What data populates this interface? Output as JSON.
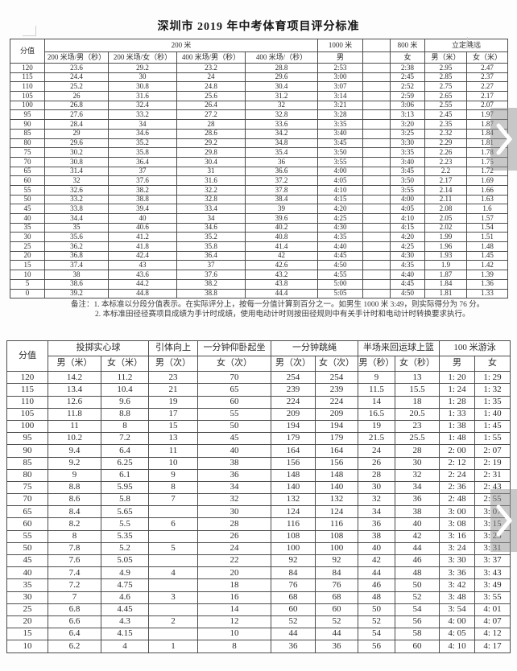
{
  "page": {
    "title": "深圳市 2019 年中考体育项目评分标准"
  },
  "colors": {
    "table_border": "#4d4d4d",
    "text": "#2b2b2b",
    "arrow_overlay": "rgba(145,145,145,0.5)",
    "arrow_glyph": "#ffffff"
  },
  "icons": {
    "next": "chevron-right"
  },
  "table1": {
    "header_row1": {
      "score": "分值",
      "m200": "200 米",
      "m1000": "1000 米",
      "empty": "",
      "m800": "800 米",
      "jump": "立定跳远"
    },
    "header_row2": [
      "200 米场/男（秒）",
      "200 米场/女（秒）",
      "400 米场/男（秒）",
      "400 米场/（秒）",
      "男",
      "",
      "女",
      "男（米）",
      "女（米）"
    ],
    "rows": [
      [
        "120",
        "23.6",
        "29.2",
        "23.2",
        "28.8",
        "2:53",
        "",
        "2:38",
        "2.95",
        "2.47"
      ],
      [
        "115",
        "24.4",
        "30",
        "24",
        "29.6",
        "3:00",
        "",
        "2:45",
        "2.85",
        "2.37"
      ],
      [
        "110",
        "25.2",
        "30.8",
        "24.8",
        "30.4",
        "3:07",
        "",
        "2:52",
        "2.75",
        "2.27"
      ],
      [
        "105",
        "26",
        "31.6",
        "25.6",
        "31.2",
        "3:14",
        "",
        "2:59",
        "2.65",
        "2.17"
      ],
      [
        "100",
        "26.8",
        "32.4",
        "26.4",
        "32",
        "3:21",
        "",
        "3:06",
        "2.55",
        "2.07"
      ],
      [
        "95",
        "27.6",
        "33.2",
        "27.2",
        "32.8",
        "3:28",
        "",
        "3:13",
        "2.45",
        "1.97"
      ],
      [
        "90",
        "28.4",
        "34",
        "28",
        "33.6",
        "3:35",
        "",
        "3:20",
        "2.35",
        "1.87"
      ],
      [
        "85",
        "29",
        "34.6",
        "28.6",
        "34.2",
        "3:40",
        "",
        "3:25",
        "2.32",
        "1.84"
      ],
      [
        "80",
        "29.6",
        "35.2",
        "29.2",
        "34.8",
        "3:45",
        "",
        "3:30",
        "2.29",
        "1.81"
      ],
      [
        "75",
        "30.2",
        "35.8",
        "29.8",
        "35.4",
        "3:50",
        "",
        "3:35",
        "2.26",
        "1.78"
      ],
      [
        "70",
        "30.8",
        "36.4",
        "30.4",
        "36",
        "3:55",
        "",
        "3:40",
        "2.23",
        "1.75"
      ],
      [
        "65",
        "31.4",
        "37",
        "31",
        "36.6",
        "4:00",
        "",
        "3:45",
        "2.2",
        "1.72"
      ],
      [
        "60",
        "32",
        "37.6",
        "31.6",
        "37.2",
        "4:05",
        "",
        "3:50",
        "2.17",
        "1.69"
      ],
      [
        "55",
        "32.6",
        "38.2",
        "32.2",
        "37.8",
        "4:10",
        "",
        "3:55",
        "2.14",
        "1.66"
      ],
      [
        "50",
        "33.2",
        "38.8",
        "32.8",
        "38.4",
        "4:15",
        "",
        "4:00",
        "2.11",
        "1.63"
      ],
      [
        "45",
        "33.8",
        "39.4",
        "33.4",
        "39",
        "4:20",
        "",
        "4:05",
        "2.08",
        "1.6"
      ],
      [
        "40",
        "34.4",
        "40",
        "34",
        "39.6",
        "4:25",
        "",
        "4:10",
        "2.05",
        "1.57"
      ],
      [
        "35",
        "35",
        "40.6",
        "34.6",
        "40.2",
        "4:30",
        "",
        "4:15",
        "2.02",
        "1.54"
      ],
      [
        "30",
        "35.6",
        "41.2",
        "35.2",
        "40.8",
        "4:35",
        "",
        "4:20",
        "1.99",
        "1.51"
      ],
      [
        "25",
        "36.2",
        "41.8",
        "35.8",
        "41.4",
        "4:40",
        "",
        "4:25",
        "1.96",
        "1.48"
      ],
      [
        "20",
        "36.8",
        "42.4",
        "36.4",
        "42",
        "4:45",
        "",
        "4:30",
        "1.93",
        "1.45"
      ],
      [
        "15",
        "37.4",
        "43",
        "37",
        "42.6",
        "4:50",
        "",
        "4:35",
        "1.9",
        "1.42"
      ],
      [
        "10",
        "38",
        "43.6",
        "37.6",
        "43.2",
        "4:55",
        "",
        "4:40",
        "1.87",
        "1.39"
      ],
      [
        "5",
        "38.6",
        "44.2",
        "38.2",
        "43.8",
        "5:00",
        "",
        "4:45",
        "1.84",
        "1.36"
      ],
      [
        "0",
        "39.2",
        "44.8",
        "38.8",
        "44.4",
        "5:05",
        "",
        "4:50",
        "1.81",
        "1.33"
      ]
    ]
  },
  "notes": {
    "label": "备注：",
    "items": [
      "1. 本标准以分段分值表示。在实际评分上，按每一分值计算到百分之一。如男生 1000 米 3:49，则实际得分为 76 分。",
      "2. 本标准田径径赛项目成绩为手计时成绩，使用电动计时则按田径规则中有关手计时和电动计时转换要求执行。"
    ]
  },
  "table2": {
    "header_row1": {
      "score": "分值",
      "shot": "投掷实心球",
      "pullup": "引体向上",
      "situp": "一分钟仰卧起坐",
      "rope": "一分钟跳绳",
      "basketball": "半场来回运球上篮",
      "swim": "100 米游泳"
    },
    "header_row2": [
      "男（米）",
      "女（米）",
      "男（次）",
      "女（次）",
      "男（次）",
      "女（次）",
      "男（秒）",
      "女（秒）",
      "男",
      "女"
    ],
    "rows": [
      [
        "120",
        "14.2",
        "11.2",
        "23",
        "70",
        "254",
        "254",
        "9",
        "13",
        "1: 20",
        "1: 29"
      ],
      [
        "115",
        "13.4",
        "10.4",
        "21",
        "65",
        "239",
        "239",
        "11.5",
        "15.5",
        "1: 24",
        "1: 32"
      ],
      [
        "110",
        "12.6",
        "9.6",
        "19",
        "60",
        "224",
        "224",
        "14",
        "18",
        "1: 28",
        "1: 35"
      ],
      [
        "105",
        "11.8",
        "8.8",
        "17",
        "55",
        "209",
        "209",
        "16.5",
        "20.5",
        "1: 33",
        "1: 40"
      ],
      [
        "100",
        "11",
        "8",
        "15",
        "50",
        "194",
        "194",
        "19",
        "23",
        "1: 38",
        "1: 45"
      ],
      [
        "95",
        "10.2",
        "7.2",
        "13",
        "45",
        "179",
        "179",
        "21.5",
        "25.5",
        "1: 48",
        "1: 55"
      ],
      [
        "90",
        "9.4",
        "6.4",
        "11",
        "40",
        "164",
        "164",
        "24",
        "28",
        "2: 00",
        "2: 07"
      ],
      [
        "85",
        "9.2",
        "6.25",
        "10",
        "38",
        "156",
        "156",
        "26",
        "30",
        "2: 12",
        "2: 19"
      ],
      [
        "80",
        "9",
        "6.1",
        "9",
        "36",
        "148",
        "148",
        "28",
        "32",
        "2: 24",
        "2: 31"
      ],
      [
        "75",
        "8.8",
        "5.95",
        "8",
        "34",
        "140",
        "140",
        "30",
        "34",
        "2: 36",
        "2: 43"
      ],
      [
        "70",
        "8.6",
        "5.8",
        "7",
        "32",
        "132",
        "132",
        "32",
        "36",
        "2: 48",
        "2: 55"
      ],
      [
        "65",
        "8.4",
        "5.65",
        "",
        "30",
        "124",
        "124",
        "34",
        "38",
        "3: 00",
        "3: 07"
      ],
      [
        "60",
        "8.2",
        "5.5",
        "6",
        "28",
        "116",
        "116",
        "36",
        "40",
        "3: 08",
        "3: 15"
      ],
      [
        "55",
        "8",
        "5.35",
        "",
        "26",
        "108",
        "108",
        "38",
        "42",
        "3: 16",
        "3: 23"
      ],
      [
        "50",
        "7.8",
        "5.2",
        "5",
        "24",
        "100",
        "100",
        "40",
        "44",
        "3: 24",
        "3: 31"
      ],
      [
        "45",
        "7.6",
        "5.05",
        "",
        "22",
        "92",
        "92",
        "42",
        "46",
        "3: 30",
        "3: 37"
      ],
      [
        "40",
        "7.4",
        "4.9",
        "4",
        "20",
        "84",
        "84",
        "44",
        "48",
        "3: 36",
        "3: 43"
      ],
      [
        "35",
        "7.2",
        "4.75",
        "",
        "18",
        "76",
        "76",
        "46",
        "50",
        "3: 42",
        "3: 49"
      ],
      [
        "30",
        "7",
        "4.6",
        "3",
        "16",
        "68",
        "68",
        "48",
        "52",
        "3: 48",
        "3: 55"
      ],
      [
        "25",
        "6.8",
        "4.45",
        "",
        "14",
        "60",
        "60",
        "50",
        "54",
        "3: 54",
        "4: 01"
      ],
      [
        "20",
        "6.6",
        "4.3",
        "2",
        "12",
        "52",
        "52",
        "52",
        "56",
        "4: 00",
        "4: 07"
      ],
      [
        "15",
        "6.4",
        "4.15",
        "",
        "10",
        "44",
        "44",
        "54",
        "58",
        "4: 05",
        "4: 12"
      ],
      [
        "10",
        "6.2",
        "4",
        "1",
        "8",
        "36",
        "36",
        "56",
        "60",
        "4: 10",
        "4: 17"
      ]
    ]
  }
}
